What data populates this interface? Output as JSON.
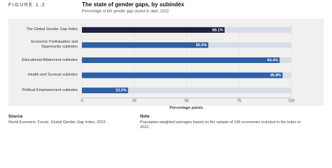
{
  "chart_data": {
    "type": "hbar",
    "figure_label": "FIGURE 1.2",
    "title": "The state of gender gaps, by subindex",
    "subtitle": "Percentage of the gender gap closed to date, 2022",
    "categories": [
      "The Global Gender Gap Index",
      "Economic Participation and Opportunity subindex",
      "Educational Attainment subindex",
      "Health and Survival subindex",
      "Political Empowerment subindex"
    ],
    "values": [
      68.1,
      60.3,
      94.4,
      95.8,
      22.0
    ],
    "value_labels": [
      "68.1%",
      "60.3%",
      "94.4%",
      "95.8%",
      "22.0%"
    ],
    "colors": [
      "#1b2140",
      "#2d5fa6",
      "#2d5fa6",
      "#2d5fa6",
      "#2d5fa6"
    ],
    "track_color": "#d6deea",
    "xlim": [
      0,
      100
    ],
    "xticks": [
      0,
      25,
      50,
      75,
      100
    ],
    "x_label": "Percentage points"
  },
  "footer": {
    "source_heading": "Source",
    "source": "World Economic Forum, Global Gender Gap Index, 2022.",
    "note_heading": "Note",
    "note": "Population-weighted averages based on the sample of 146 economies included in the index in 2022."
  }
}
